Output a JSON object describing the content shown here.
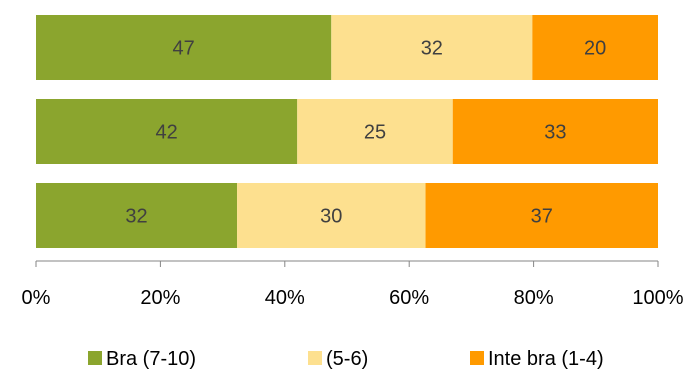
{
  "chart_data": {
    "type": "bar",
    "orientation": "horizontal",
    "stacked": "percent",
    "categories": [
      "",
      "",
      ""
    ],
    "series": [
      {
        "name": "Bra (7-10)",
        "color": "#8ba52e",
        "values": [
          47,
          42,
          32
        ]
      },
      {
        "name": "(5-6)",
        "color": "#fde08f",
        "values": [
          32,
          25,
          30
        ]
      },
      {
        "name": "Inte bra (1-4)",
        "color": "#ff9a00",
        "values": [
          20,
          33,
          37
        ]
      }
    ],
    "xlim": [
      0,
      100
    ],
    "x_ticks": [
      "0%",
      "20%",
      "40%",
      "60%",
      "80%",
      "100%"
    ],
    "grid": false,
    "legend_position": "bottom"
  }
}
